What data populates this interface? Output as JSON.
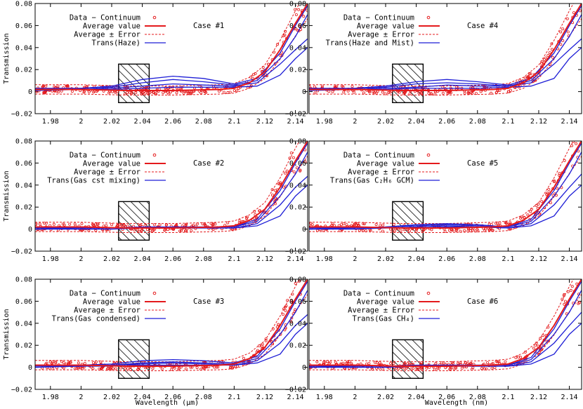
{
  "figure": {
    "ylabel": "Transmission",
    "xlabels": [
      "Wavelength (µm)",
      "Wavelength (nm)"
    ]
  },
  "colors": {
    "data": "#e41a1c",
    "model": "#1f1fd6",
    "axis": "#000000"
  },
  "chart_data": [
    {
      "type": "line",
      "case_label": "Case #1",
      "legend": [
        "Data − Continuum",
        "Average value",
        "Average ± Error",
        "Trans(Haze)"
      ],
      "xlim": [
        1.97,
        2.148
      ],
      "ylim": [
        -0.02,
        0.08
      ],
      "xticks": [
        "1.98",
        "2",
        "2.02",
        "2.04",
        "2.06",
        "2.08",
        "2.1",
        "2.12",
        "2.14"
      ],
      "yticks": [
        "0.08",
        "0.06",
        "0.04",
        "0.02",
        "0",
        "−0.02"
      ],
      "avg": {
        "x": [
          1.97,
          2.0,
          2.03,
          2.06,
          2.09,
          2.1,
          2.11,
          2.12,
          2.13,
          2.14,
          2.148
        ],
        "y": [
          0.002,
          0.002,
          0.001,
          0.001,
          0.002,
          0.003,
          0.008,
          0.018,
          0.038,
          0.062,
          0.08
        ]
      },
      "model_series": [
        {
          "x": [
            1.97,
            2.0,
            2.02,
            2.04,
            2.06,
            2.08,
            2.1,
            2.115,
            2.13,
            2.14,
            2.148
          ],
          "y": [
            0.003,
            0.003,
            0.005,
            0.011,
            0.014,
            0.012,
            0.007,
            0.012,
            0.035,
            0.06,
            0.078
          ]
        },
        {
          "x": [
            1.97,
            2.0,
            2.02,
            2.04,
            2.06,
            2.08,
            2.1,
            2.115,
            2.13,
            2.14,
            2.148
          ],
          "y": [
            0.002,
            0.003,
            0.004,
            0.008,
            0.011,
            0.009,
            0.006,
            0.01,
            0.03,
            0.05,
            0.07
          ]
        },
        {
          "x": [
            1.97,
            2.0,
            2.02,
            2.04,
            2.06,
            2.08,
            2.1,
            2.115,
            2.13,
            2.14,
            2.148
          ],
          "y": [
            0.002,
            0.002,
            0.003,
            0.005,
            0.007,
            0.006,
            0.005,
            0.008,
            0.025,
            0.038,
            0.048
          ]
        },
        {
          "x": [
            1.97,
            2.0,
            2.02,
            2.04,
            2.06,
            2.08,
            2.1,
            2.115,
            2.13,
            2.14,
            2.148
          ],
          "y": [
            0.001,
            0.002,
            0.002,
            0.003,
            0.004,
            0.004,
            0.004,
            0.005,
            0.015,
            0.03,
            0.04
          ]
        }
      ]
    },
    {
      "type": "line",
      "case_label": "Case #4",
      "legend": [
        "Data − Continuum",
        "Average value",
        "Average ± Error",
        "Trans(Haze and Mist)"
      ],
      "xlim": [
        1.97,
        2.148
      ],
      "ylim": [
        -0.02,
        0.08
      ],
      "xticks": [
        "1.98",
        "2",
        "2.02",
        "2.04",
        "2.06",
        "2.08",
        "2.1",
        "2.12",
        "2.14"
      ],
      "yticks": [
        "0.08",
        "0.06",
        "0.04",
        "0.02",
        "0",
        "−0.02"
      ],
      "avg": {
        "x": [
          1.97,
          2.0,
          2.03,
          2.06,
          2.09,
          2.1,
          2.11,
          2.12,
          2.13,
          2.14,
          2.148
        ],
        "y": [
          0.002,
          0.002,
          0.001,
          0.001,
          0.002,
          0.003,
          0.008,
          0.018,
          0.038,
          0.062,
          0.08
        ]
      },
      "model_series": [
        {
          "x": [
            1.97,
            2.0,
            2.02,
            2.04,
            2.06,
            2.08,
            2.1,
            2.115,
            2.13,
            2.14,
            2.148
          ],
          "y": [
            0.003,
            0.003,
            0.005,
            0.009,
            0.011,
            0.009,
            0.006,
            0.012,
            0.035,
            0.06,
            0.078
          ]
        },
        {
          "x": [
            1.97,
            2.0,
            2.02,
            2.04,
            2.06,
            2.08,
            2.1,
            2.115,
            2.13,
            2.14,
            2.148
          ],
          "y": [
            0.002,
            0.003,
            0.004,
            0.007,
            0.008,
            0.007,
            0.005,
            0.01,
            0.03,
            0.05,
            0.07
          ]
        },
        {
          "x": [
            1.97,
            2.0,
            2.02,
            2.04,
            2.06,
            2.08,
            2.1,
            2.115,
            2.13,
            2.14,
            2.148
          ],
          "y": [
            0.002,
            0.002,
            0.003,
            0.004,
            0.006,
            0.005,
            0.005,
            0.008,
            0.025,
            0.038,
            0.048
          ]
        },
        {
          "x": [
            1.97,
            2.0,
            2.02,
            2.04,
            2.06,
            2.08,
            2.1,
            2.115,
            2.13,
            2.14,
            2.148
          ],
          "y": [
            0.001,
            0.002,
            0.002,
            0.003,
            0.003,
            0.003,
            0.004,
            0.005,
            0.012,
            0.03,
            0.04
          ]
        }
      ]
    },
    {
      "type": "line",
      "case_label": "Case #2",
      "legend": [
        "Data − Continuum",
        "Average value",
        "Average ± Error",
        "Trans(Gas cst mixing)"
      ],
      "xlim": [
        1.97,
        2.148
      ],
      "ylim": [
        -0.02,
        0.08
      ],
      "xticks": [
        "1.98",
        "2",
        "2.02",
        "2.04",
        "2.06",
        "2.08",
        "2.1",
        "2.12",
        "2.14"
      ],
      "yticks": [
        "0.08",
        "0.06",
        "0.04",
        "0.02",
        "0",
        "−0.02"
      ],
      "avg": {
        "x": [
          1.97,
          2.0,
          2.03,
          2.06,
          2.09,
          2.1,
          2.11,
          2.12,
          2.13,
          2.14,
          2.148
        ],
        "y": [
          0.002,
          0.002,
          0.001,
          0.001,
          0.002,
          0.003,
          0.008,
          0.018,
          0.038,
          0.062,
          0.08
        ]
      },
      "model_series": [
        {
          "x": [
            1.97,
            2.0,
            2.02,
            2.04,
            2.06,
            2.08,
            2.1,
            2.115,
            2.13,
            2.14,
            2.148
          ],
          "y": [
            0.001,
            0.001,
            0.001,
            0.002,
            0.002,
            0.002,
            0.002,
            0.009,
            0.035,
            0.06,
            0.078
          ]
        },
        {
          "x": [
            1.97,
            2.0,
            2.02,
            2.04,
            2.06,
            2.08,
            2.1,
            2.115,
            2.13,
            2.14,
            2.148
          ],
          "y": [
            0.001,
            0.001,
            0.001,
            0.001,
            0.002,
            0.002,
            0.002,
            0.007,
            0.03,
            0.05,
            0.07
          ]
        },
        {
          "x": [
            1.97,
            2.0,
            2.02,
            2.04,
            2.06,
            2.08,
            2.1,
            2.115,
            2.13,
            2.14,
            2.148
          ],
          "y": [
            0.0,
            0.001,
            0.001,
            0.001,
            0.001,
            0.001,
            0.001,
            0.005,
            0.022,
            0.038,
            0.048
          ]
        },
        {
          "x": [
            1.97,
            2.0,
            2.02,
            2.04,
            2.06,
            2.08,
            2.1,
            2.115,
            2.13,
            2.14,
            2.148
          ],
          "y": [
            0.0,
            0.0,
            0.0,
            0.001,
            0.001,
            0.001,
            0.001,
            0.003,
            0.012,
            0.03,
            0.04
          ]
        }
      ]
    },
    {
      "type": "line",
      "case_label": "Case #5",
      "legend": [
        "Data − Continuum",
        "Average value",
        "Average ± Error",
        "Trans(Gas C₂H₆ GCM)"
      ],
      "xlim": [
        1.97,
        2.148
      ],
      "ylim": [
        -0.02,
        0.08
      ],
      "xticks": [
        "1.98",
        "2",
        "2.02",
        "2.04",
        "2.06",
        "2.08",
        "2.1",
        "2.12",
        "2.14"
      ],
      "yticks": [
        "0.08",
        "0.06",
        "0.04",
        "0.02",
        "0",
        "−0.02"
      ],
      "avg": {
        "x": [
          1.97,
          2.0,
          2.03,
          2.06,
          2.09,
          2.1,
          2.11,
          2.12,
          2.13,
          2.14,
          2.148
        ],
        "y": [
          0.002,
          0.002,
          0.001,
          0.001,
          0.002,
          0.003,
          0.008,
          0.018,
          0.038,
          0.062,
          0.08
        ]
      },
      "model_series": [
        {
          "x": [
            1.97,
            2.0,
            2.02,
            2.04,
            2.06,
            2.08,
            2.1,
            2.115,
            2.13,
            2.14,
            2.148
          ],
          "y": [
            0.001,
            0.001,
            0.002,
            0.004,
            0.005,
            0.004,
            0.002,
            0.009,
            0.035,
            0.06,
            0.078
          ]
        },
        {
          "x": [
            1.97,
            2.0,
            2.02,
            2.04,
            2.06,
            2.08,
            2.1,
            2.115,
            2.13,
            2.14,
            2.148
          ],
          "y": [
            0.001,
            0.001,
            0.002,
            0.003,
            0.004,
            0.003,
            0.002,
            0.007,
            0.03,
            0.05,
            0.07
          ]
        },
        {
          "x": [
            1.97,
            2.0,
            2.02,
            2.04,
            2.06,
            2.08,
            2.1,
            2.115,
            2.13,
            2.14,
            2.148
          ],
          "y": [
            0.0,
            0.001,
            0.001,
            0.002,
            0.003,
            0.002,
            0.001,
            0.005,
            0.022,
            0.038,
            0.05
          ]
        },
        {
          "x": [
            1.97,
            2.0,
            2.02,
            2.04,
            2.06,
            2.08,
            2.1,
            2.115,
            2.13,
            2.14,
            2.148
          ],
          "y": [
            0.0,
            0.0,
            0.001,
            0.001,
            0.002,
            0.002,
            0.001,
            0.003,
            0.012,
            0.03,
            0.04
          ]
        }
      ]
    },
    {
      "type": "line",
      "case_label": "Case #3",
      "legend": [
        "Data − Continuum",
        "Average value",
        "Average ± Error",
        "Trans(Gas condensed)"
      ],
      "xlim": [
        1.97,
        2.148
      ],
      "ylim": [
        -0.02,
        0.08
      ],
      "xticks": [
        "1.98",
        "2",
        "2.02",
        "2.04",
        "2.06",
        "2.08",
        "2.1",
        "2.12",
        "2.14"
      ],
      "yticks": [
        "0.08",
        "0.06",
        "0.04",
        "0.02",
        "0",
        "−0.02"
      ],
      "avg": {
        "x": [
          1.97,
          2.0,
          2.03,
          2.06,
          2.09,
          2.1,
          2.11,
          2.12,
          2.13,
          2.14,
          2.148
        ],
        "y": [
          0.002,
          0.002,
          0.001,
          0.001,
          0.002,
          0.003,
          0.008,
          0.018,
          0.038,
          0.062,
          0.08
        ]
      },
      "model_series": [
        {
          "x": [
            1.97,
            2.0,
            2.02,
            2.04,
            2.06,
            2.08,
            2.1,
            2.115,
            2.13,
            2.14,
            2.148
          ],
          "y": [
            0.002,
            0.002,
            0.003,
            0.006,
            0.007,
            0.006,
            0.004,
            0.01,
            0.035,
            0.06,
            0.078
          ]
        },
        {
          "x": [
            1.97,
            2.0,
            2.02,
            2.04,
            2.06,
            2.08,
            2.1,
            2.115,
            2.13,
            2.14,
            2.148
          ],
          "y": [
            0.001,
            0.002,
            0.002,
            0.004,
            0.005,
            0.004,
            0.003,
            0.008,
            0.03,
            0.05,
            0.07
          ]
        },
        {
          "x": [
            1.97,
            2.0,
            2.02,
            2.04,
            2.06,
            2.08,
            2.1,
            2.115,
            2.13,
            2.14,
            2.148
          ],
          "y": [
            0.001,
            0.001,
            0.002,
            0.003,
            0.004,
            0.003,
            0.002,
            0.006,
            0.022,
            0.038,
            0.048
          ]
        },
        {
          "x": [
            1.97,
            2.0,
            2.02,
            2.04,
            2.06,
            2.08,
            2.1,
            2.115,
            2.13,
            2.14,
            2.148
          ],
          "y": [
            0.0,
            0.001,
            0.001,
            0.002,
            0.002,
            0.002,
            0.002,
            0.004,
            0.012,
            0.03,
            0.04
          ]
        }
      ]
    },
    {
      "type": "line",
      "case_label": "Case #6",
      "legend": [
        "Data − Continuum",
        "Average value",
        "Average ± Error",
        "Trans(Gas CH₄)"
      ],
      "xlim": [
        1.97,
        2.148
      ],
      "ylim": [
        -0.02,
        0.08
      ],
      "xticks": [
        "1.98",
        "2",
        "2.02",
        "2.04",
        "2.06",
        "2.08",
        "2.1",
        "2.12",
        "2.14"
      ],
      "yticks": [
        "0.08",
        "0.06",
        "0.04",
        "0.02",
        "0",
        "−0.02"
      ],
      "avg": {
        "x": [
          1.97,
          2.0,
          2.03,
          2.06,
          2.09,
          2.1,
          2.11,
          2.12,
          2.13,
          2.14,
          2.148
        ],
        "y": [
          0.002,
          0.002,
          0.001,
          0.001,
          0.002,
          0.003,
          0.008,
          0.018,
          0.038,
          0.062,
          0.08
        ]
      },
      "model_series": [
        {
          "x": [
            1.97,
            2.0,
            2.02,
            2.04,
            2.06,
            2.08,
            2.1,
            2.115,
            2.13,
            2.14,
            2.148
          ],
          "y": [
            0.001,
            0.001,
            0.001,
            0.002,
            0.002,
            0.002,
            0.002,
            0.009,
            0.035,
            0.06,
            0.078
          ]
        },
        {
          "x": [
            1.97,
            2.0,
            2.02,
            2.04,
            2.06,
            2.08,
            2.1,
            2.115,
            2.13,
            2.14,
            2.148
          ],
          "y": [
            0.001,
            0.001,
            0.001,
            0.001,
            0.002,
            0.002,
            0.002,
            0.007,
            0.03,
            0.05,
            0.07
          ]
        },
        {
          "x": [
            1.97,
            2.0,
            2.02,
            2.04,
            2.06,
            2.08,
            2.1,
            2.115,
            2.13,
            2.14,
            2.148
          ],
          "y": [
            0.0,
            0.001,
            0.001,
            0.001,
            0.001,
            0.001,
            0.001,
            0.005,
            0.022,
            0.038,
            0.05
          ]
        },
        {
          "x": [
            1.97,
            2.0,
            2.02,
            2.04,
            2.06,
            2.08,
            2.1,
            2.115,
            2.13,
            2.14,
            2.148
          ],
          "y": [
            0.0,
            0.0,
            0.0,
            0.001,
            0.001,
            0.001,
            0.001,
            0.003,
            0.012,
            0.03,
            0.04
          ]
        }
      ]
    }
  ]
}
